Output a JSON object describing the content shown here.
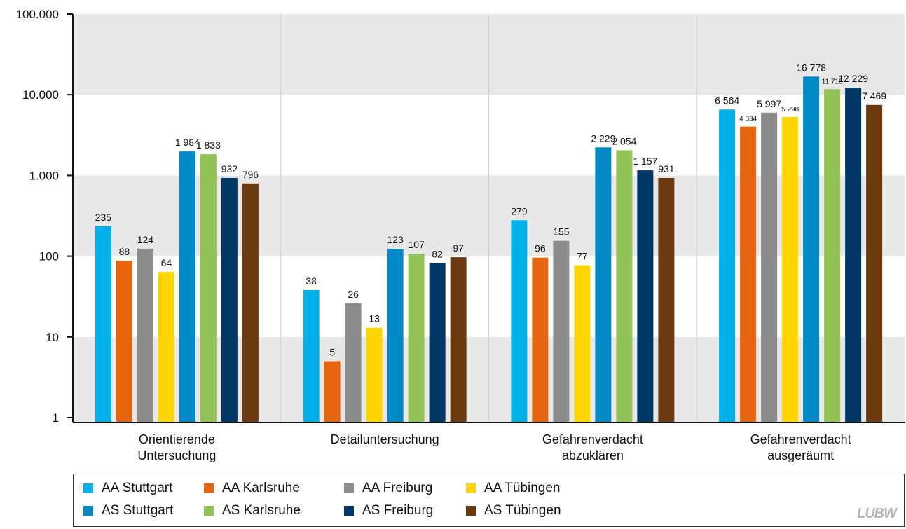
{
  "chart_data": {
    "type": "bar",
    "scale": "log",
    "categories": [
      [
        "Orientierende",
        "Untersuchung"
      ],
      [
        "Detailuntersuchung"
      ],
      [
        "Gefahrenverdacht",
        "abzuklären"
      ],
      [
        "Gefahrenverdacht",
        "ausgeräumt"
      ]
    ],
    "y_ticks": [
      {
        "value": 1,
        "label": "1"
      },
      {
        "value": 10,
        "label": "10"
      },
      {
        "value": 100,
        "label": "100"
      },
      {
        "value": 1000,
        "label": "1.000"
      },
      {
        "value": 10000,
        "label": "10.000"
      },
      {
        "value": 100000,
        "label": "100.000"
      }
    ],
    "ylim": [
      1,
      100000
    ],
    "legend_position": "bottom",
    "series": [
      {
        "name": "AA Stuttgart",
        "color": "#00B0E8",
        "values": [
          235,
          38,
          279,
          6564
        ],
        "labels": [
          "235",
          "38",
          "279",
          "6 564"
        ]
      },
      {
        "name": "AA Karlsruhe",
        "color": "#E8650F",
        "values": [
          88,
          5,
          96,
          4034
        ],
        "labels": [
          "88",
          "5",
          "96",
          "4 034"
        ],
        "small_labels": [
          false,
          false,
          false,
          true
        ]
      },
      {
        "name": "AA Freiburg",
        "color": "#8C8C8C",
        "values": [
          124,
          26,
          155,
          5997
        ],
        "labels": [
          "124",
          "26",
          "155",
          "5 997"
        ]
      },
      {
        "name": "AA Tübingen",
        "color": "#FFD500",
        "values": [
          64,
          13,
          77,
          5298
        ],
        "labels": [
          "64",
          "13",
          "77",
          "5 298"
        ],
        "small_labels": [
          false,
          false,
          false,
          true
        ]
      },
      {
        "name": "AS Stuttgart",
        "color": "#0088C7",
        "values": [
          1984,
          123,
          2229,
          16778
        ],
        "labels": [
          "1 984",
          "123",
          "2 229",
          "16 778"
        ]
      },
      {
        "name": "AS Karlsruhe",
        "color": "#93C356",
        "values": [
          1833,
          107,
          2054,
          11718
        ],
        "labels": [
          "1 833",
          "107",
          "2 054",
          "11 718"
        ],
        "small_labels": [
          false,
          false,
          false,
          true
        ]
      },
      {
        "name": "AS Freiburg",
        "color": "#003764",
        "values": [
          932,
          82,
          1157,
          12229
        ],
        "labels": [
          "932",
          "82",
          "1 157",
          "12 229"
        ]
      },
      {
        "name": "AS Tübingen",
        "color": "#6B3A0F",
        "values": [
          796,
          97,
          931,
          7469
        ],
        "labels": [
          "796",
          "97",
          "931",
          "7 469"
        ]
      }
    ]
  },
  "legend": {
    "items": [
      "AA Stuttgart",
      "AA Karlsruhe",
      "AA Freiburg",
      "AA Tübingen",
      "AS Stuttgart",
      "AS Karlsruhe",
      "AS Freiburg",
      "AS Tübingen"
    ]
  },
  "logo_text": "LUBW"
}
